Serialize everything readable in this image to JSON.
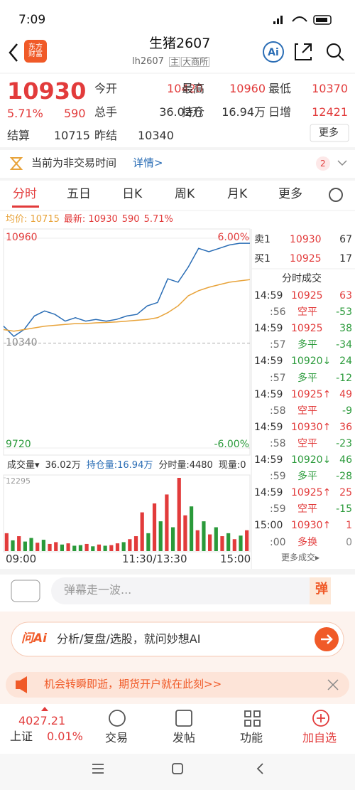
{
  "status_bar": {
    "time": "7:09"
  },
  "header": {
    "logo": "东方财富",
    "title": "生猪2607",
    "code": "lh2607",
    "tags": [
      "主",
      "大商所"
    ]
  },
  "quote": {
    "price": 10930,
    "change_pct": "5.71%",
    "change": 590,
    "fields": [
      {
        "label": "今开",
        "value": 10420
      },
      {
        "label": "最高",
        "value": 10960
      },
      {
        "label": "最低",
        "value": 10370
      },
      {
        "label": "总手",
        "value": "36.02万"
      },
      {
        "label": "持仓",
        "value": "16.94万"
      },
      {
        "label": "日增",
        "value": 12421
      },
      {
        "label": "结算",
        "value": 10715
      },
      {
        "label": "昨结",
        "value": 10340
      }
    ],
    "more": "更多"
  },
  "notice": {
    "text": "当前为非交易时间",
    "link": "详情>",
    "badge": 2
  },
  "tabs": [
    "分时",
    "五日",
    "日K",
    "周K",
    "月K",
    "更多"
  ],
  "chart_data": [
    {
      "type": "line",
      "info": [
        {
          "text": "均价: 10715",
          "color": "#e8a33a"
        },
        {
          "text": "最新: 10930",
          "color": "#e23b3b"
        },
        {
          "text": "590",
          "color": "#e23b3b"
        },
        {
          "text": "5.71%",
          "color": "#e23b3b"
        }
      ],
      "ylim": [
        9720,
        10960
      ],
      "yticks": [
        10960,
        10340,
        9720
      ],
      "y2lim": [
        -6,
        6
      ],
      "y2ticks": [
        {
          "value": 6,
          "label": "6.00%"
        },
        {
          "value": -6,
          "label": "-6.00%"
        }
      ],
      "xlabels": [
        "09:00",
        "11:30/13:30",
        "15:00"
      ],
      "series": [
        {
          "color": "#2a6db5",
          "values": [
            10440,
            10380,
            10420,
            10500,
            10530,
            10510,
            10470,
            10490,
            10470,
            10480,
            10470,
            10480,
            10500,
            10510,
            10560,
            10580,
            10720,
            10700,
            10790,
            10900,
            10880,
            10900,
            10920,
            10930,
            10930
          ]
        },
        {
          "color": "#e8a33a",
          "values": [
            10420,
            10410,
            10420,
            10430,
            10440,
            10445,
            10450,
            10455,
            10455,
            10460,
            10462,
            10465,
            10470,
            10475,
            10480,
            10490,
            10520,
            10560,
            10620,
            10650,
            10670,
            10685,
            10700,
            10708,
            10715
          ]
        }
      ]
    },
    {
      "type": "bar",
      "header": [
        {
          "text": "成交量▾",
          "color": "#333"
        },
        {
          "text": "36.02万",
          "color": "#333"
        },
        {
          "text": "持仓量:16.94万",
          "color": "#2a6db5"
        },
        {
          "text": "分时量:4480",
          "color": "#333"
        },
        {
          "text": "现量:0",
          "color": "#333"
        }
      ],
      "ylim": [
        0,
        12295
      ],
      "yticks": [
        12295
      ],
      "values": [
        3000,
        1800,
        2500,
        1600,
        2200,
        1400,
        1900,
        1200,
        1500,
        1100,
        1300,
        900,
        1000,
        1200,
        800,
        1100,
        900,
        1000,
        1300,
        1500,
        2000,
        2500,
        6500,
        3000,
        8000,
        5000,
        9500,
        4000,
        12295,
        6000,
        7500,
        3500,
        5000,
        2800,
        4000,
        2500,
        3000,
        2000,
        2600,
        3500
      ],
      "colors": [
        "#e23b3b",
        "#2a9a3a",
        "#e23b3b",
        "#2a9a3a",
        "#2a9a3a",
        "#e23b3b",
        "#2a9a3a",
        "#e23b3b",
        "#e23b3b",
        "#2a9a3a",
        "#e23b3b",
        "#2a9a3a",
        "#2a9a3a",
        "#e23b3b",
        "#2a9a3a",
        "#e23b3b",
        "#2a9a3a",
        "#e23b3b",
        "#e23b3b",
        "#2a9a3a",
        "#e23b3b",
        "#e23b3b",
        "#e23b3b",
        "#2a9a3a",
        "#e23b3b",
        "#2a9a3a",
        "#e23b3b",
        "#2a9a3a",
        "#e23b3b",
        "#e23b3b",
        "#2a9a3a",
        "#e23b3b",
        "#2a9a3a",
        "#e23b3b",
        "#2a9a3a",
        "#e23b3b",
        "#2a9a3a",
        "#e23b3b",
        "#2a9a3a",
        "#e23b3b"
      ]
    }
  ],
  "book": {
    "title": "分时成交",
    "sell": {
      "label": "卖1",
      "price": 10930,
      "qty": 67
    },
    "buy": {
      "label": "买1",
      "price": 10925,
      "qty": 17
    },
    "trades": [
      {
        "time": "14:59",
        "text": 10925,
        "qty": 63,
        "text_color": "#e23b3b",
        "qty_color": "#e23b3b"
      },
      {
        "time": ":56",
        "text": "空平",
        "qty": -53,
        "text_color": "#e23b3b",
        "qty_color": "#2a9a3a"
      },
      {
        "time": "14:59",
        "text": 10925,
        "qty": 38,
        "text_color": "#e23b3b",
        "qty_color": "#2a9a3a"
      },
      {
        "time": ":57",
        "text": "多平",
        "qty": -34,
        "text_color": "#2a9a3a",
        "qty_color": "#2a9a3a"
      },
      {
        "time": "14:59",
        "text": "10920↓",
        "qty": 24,
        "text_color": "#2a9a3a",
        "qty_color": "#2a9a3a"
      },
      {
        "time": ":57",
        "text": "多平",
        "qty": -12,
        "text_color": "#2a9a3a",
        "qty_color": "#2a9a3a"
      },
      {
        "time": "14:59",
        "text": "10925↑",
        "qty": 49,
        "text_color": "#e23b3b",
        "qty_color": "#e23b3b"
      },
      {
        "time": ":58",
        "text": "空平",
        "qty": -9,
        "text_color": "#e23b3b",
        "qty_color": "#2a9a3a"
      },
      {
        "time": "14:59",
        "text": "10930↑",
        "qty": 36,
        "text_color": "#e23b3b",
        "qty_color": "#e23b3b"
      },
      {
        "time": ":58",
        "text": "空平",
        "qty": -23,
        "text_color": "#e23b3b",
        "qty_color": "#2a9a3a"
      },
      {
        "time": "14:59",
        "text": "10920↓",
        "qty": 46,
        "text_color": "#2a9a3a",
        "qty_color": "#2a9a3a"
      },
      {
        "time": ":59",
        "text": "多平",
        "qty": -28,
        "text_color": "#2a9a3a",
        "qty_color": "#2a9a3a"
      },
      {
        "time": "14:59",
        "text": "10925↑",
        "qty": 25,
        "text_color": "#e23b3b",
        "qty_color": "#e23b3b"
      },
      {
        "time": ":59",
        "text": "空平",
        "qty": -15,
        "text_color": "#e23b3b",
        "qty_color": "#2a9a3a"
      },
      {
        "time": "15:00",
        "text": "10930↑",
        "qty": 1,
        "text_color": "#e23b3b",
        "qty_color": "#e23b3b"
      },
      {
        "time": ":00",
        "text": "多换",
        "qty": 0,
        "text_color": "#e23b3b",
        "qty_color": "#888"
      }
    ],
    "more": "更多成交▸"
  },
  "input": {
    "placeholder": "弹幕走一波...",
    "button": "弹"
  },
  "ai": {
    "brand": "问Ai",
    "text": "分析/复盘/选股，就问妙想AI"
  },
  "banner": "机会转瞬即逝，期货开户就在此刻>>",
  "nav": {
    "index_value": 4027.21,
    "index_name": "上证",
    "index_change": "0.01%",
    "items": [
      "交易",
      "发帖",
      "功能",
      "加自选"
    ]
  }
}
